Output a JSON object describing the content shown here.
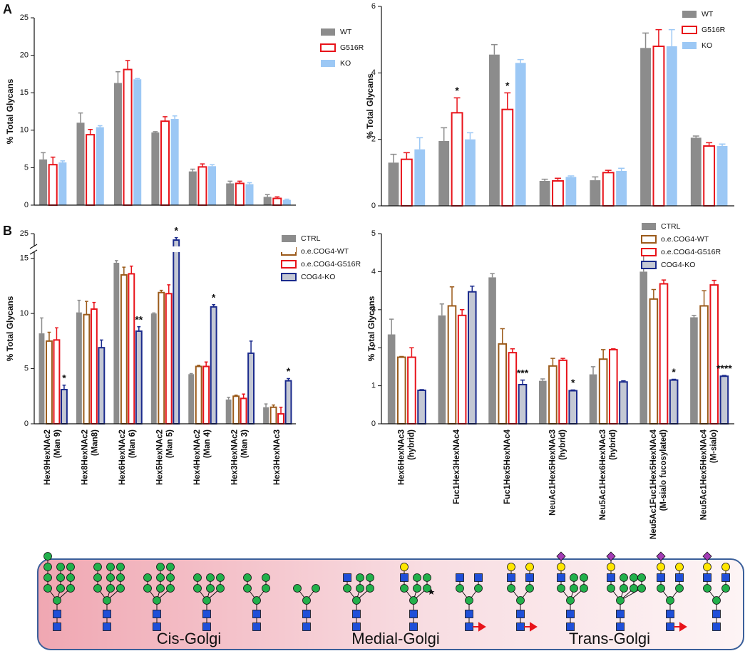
{
  "panels": [
    "A",
    "B"
  ],
  "regions": [
    "Cis-Golgi",
    "Medial-Golgi",
    "Trans-Golgi"
  ],
  "chart_data": [
    {
      "type": "bar",
      "ylabel": "% Total Glycans",
      "ylim": [
        0,
        25
      ],
      "yticks": [
        0,
        5,
        10,
        15,
        20,
        25
      ],
      "series": [
        {
          "name": "WT",
          "color": "#8c8c8c",
          "style": "filled",
          "values": [
            6.1,
            11.0,
            16.3,
            9.7,
            4.5,
            2.9,
            1.1
          ],
          "errors": [
            0.9,
            1.3,
            1.5,
            0.1,
            0.3,
            0.3,
            0.3
          ]
        },
        {
          "name": "G516R",
          "color": "#e8131a",
          "style": "outline",
          "values": [
            5.4,
            9.4,
            18.1,
            11.2,
            5.1,
            2.9,
            0.9
          ],
          "errors": [
            1.0,
            0.7,
            1.2,
            0.6,
            0.4,
            0.3,
            0.2
          ]
        },
        {
          "name": "KO",
          "color": "#9cc8f5",
          "style": "filled",
          "values": [
            5.7,
            10.4,
            16.8,
            11.5,
            5.2,
            2.8,
            0.7
          ],
          "errors": [
            0.2,
            0.2,
            0.1,
            0.4,
            0.2,
            0.2,
            0.1
          ]
        }
      ]
    },
    {
      "type": "bar",
      "ylabel": "% Total Glycans",
      "ylim": [
        0,
        6
      ],
      "yticks": [
        0,
        2,
        4,
        6
      ],
      "series": [
        {
          "name": "WT",
          "color": "#8c8c8c",
          "style": "filled",
          "values": [
            1.3,
            1.95,
            4.55,
            0.75,
            0.77,
            4.75,
            2.05
          ],
          "errors": [
            0.25,
            0.4,
            0.3,
            0.05,
            0.1,
            0.45,
            0.05
          ]
        },
        {
          "name": "G516R",
          "color": "#e8131a",
          "style": "outline",
          "values": [
            1.4,
            2.8,
            2.9,
            0.75,
            1.0,
            4.8,
            1.8
          ],
          "errors": [
            0.2,
            0.45,
            0.5,
            0.08,
            0.07,
            0.5,
            0.1
          ],
          "annotations": [
            null,
            "*",
            "*",
            null,
            null,
            null,
            null
          ]
        },
        {
          "name": "KO",
          "color": "#9cc8f5",
          "style": "filled",
          "values": [
            1.7,
            2.0,
            4.3,
            0.87,
            1.05,
            4.8,
            1.8
          ],
          "errors": [
            0.35,
            0.2,
            0.1,
            0.03,
            0.08,
            0.5,
            0.06
          ]
        }
      ]
    },
    {
      "type": "bar",
      "ylabel": "% Total Glycans",
      "ylim": [
        0,
        25
      ],
      "yticks": [
        0,
        5,
        10,
        15,
        25
      ],
      "ybreak": [
        15.5,
        23.5
      ],
      "categories": [
        [
          "Hex9HexNAc2",
          "(Man 9)"
        ],
        [
          "Hex8HexNAc2",
          "(Man8)"
        ],
        [
          "Hex6HexNAc2",
          "(Man 6)"
        ],
        [
          "Hex5HexNAc2",
          "(Man 5)"
        ],
        [
          "Hex4HexNAc2",
          "(Man 4)"
        ],
        [
          "Hex3HexNAc2",
          "(Man 3)"
        ],
        [
          "Hex3HexNAc3"
        ]
      ],
      "series": [
        {
          "name": "CTRL",
          "color": "#8c8c8c",
          "style": "filled",
          "values": [
            8.2,
            10.1,
            14.6,
            10.0,
            4.5,
            2.2,
            1.5
          ],
          "errors": [
            1.4,
            1.1,
            0.2,
            0.05,
            0.05,
            0.2,
            0.3
          ]
        },
        {
          "name": "o.e.COG4-WT",
          "color": "#9b5a1a",
          "style": "outline",
          "values": [
            7.5,
            9.9,
            13.5,
            11.9,
            5.2,
            2.5,
            1.5
          ],
          "errors": [
            0.8,
            1.2,
            0.7,
            0.2,
            0.1,
            0.1,
            0.2
          ]
        },
        {
          "name": "o.e.COG4-G516R",
          "color": "#e8131a",
          "style": "outline",
          "values": [
            7.6,
            10.4,
            13.6,
            11.8,
            5.2,
            2.3,
            0.9
          ],
          "errors": [
            1.1,
            0.6,
            0.7,
            0.8,
            0.4,
            0.4,
            0.6
          ]
        },
        {
          "name": "COG4-KO",
          "color": "#1a2a8c",
          "fill": "#c4c8d4",
          "style": "outline",
          "values": [
            3.1,
            6.9,
            8.4,
            24.2,
            10.6,
            6.4,
            3.9
          ],
          "errors": [
            0.4,
            0.7,
            0.4,
            0.3,
            0.2,
            1.1,
            0.2
          ],
          "annotations": [
            "*",
            null,
            "**",
            "*",
            "*",
            null,
            "*"
          ]
        }
      ]
    },
    {
      "type": "bar",
      "ylabel": "% Total Glycans",
      "ylim": [
        0,
        5
      ],
      "yticks": [
        0,
        1,
        2,
        3,
        4,
        5
      ],
      "categories": [
        [
          "Hex6HexNAc3",
          "(hybrid)"
        ],
        [
          "Fuc1Hex3HexNAc4"
        ],
        [
          "Fuc1Hex5HexNAc4"
        ],
        [
          "NeuAc1Hex5HexNAc3",
          "(hybrid)"
        ],
        [
          "Neu5Ac1Hex6HexNAc3",
          "(hybrid)"
        ],
        [
          "Neu5Ac1Fuc1Hex5HexNAc4",
          "(M-sialo fucosylated)"
        ],
        [
          "Neu5Ac1Hex5HexNAc4",
          "(M-sialo)"
        ]
      ],
      "series": [
        {
          "name": "CTRL",
          "color": "#8c8c8c",
          "style": "filled",
          "values": [
            2.35,
            2.85,
            3.85,
            1.13,
            1.3,
            4.0,
            2.8
          ],
          "errors": [
            0.4,
            0.3,
            0.1,
            0.05,
            0.2,
            0.45,
            0.05
          ]
        },
        {
          "name": "o.e.COG4-WT",
          "color": "#9b5a1a",
          "style": "outline",
          "values": [
            1.75,
            3.1,
            2.1,
            1.52,
            1.7,
            3.28,
            3.1
          ],
          "errors": [
            0.02,
            0.5,
            0.4,
            0.2,
            0.25,
            0.25,
            0.4
          ]
        },
        {
          "name": "o.e.COG4-G516R",
          "color": "#e8131a",
          "style": "outline",
          "values": [
            1.75,
            2.85,
            1.87,
            1.67,
            1.95,
            3.68,
            3.65
          ],
          "errors": [
            0.25,
            0.15,
            0.1,
            0.05,
            0.02,
            0.1,
            0.12
          ]
        },
        {
          "name": "COG4-KO",
          "color": "#1a2a8c",
          "fill": "#c4c8d4",
          "style": "outline",
          "values": [
            0.88,
            3.47,
            1.03,
            0.87,
            1.1,
            1.15,
            1.25
          ],
          "errors": [
            0.02,
            0.15,
            0.12,
            0.02,
            0.03,
            0.02,
            0.02
          ],
          "annotations": [
            null,
            null,
            "***",
            "*",
            null,
            "*",
            "****"
          ]
        }
      ]
    }
  ]
}
